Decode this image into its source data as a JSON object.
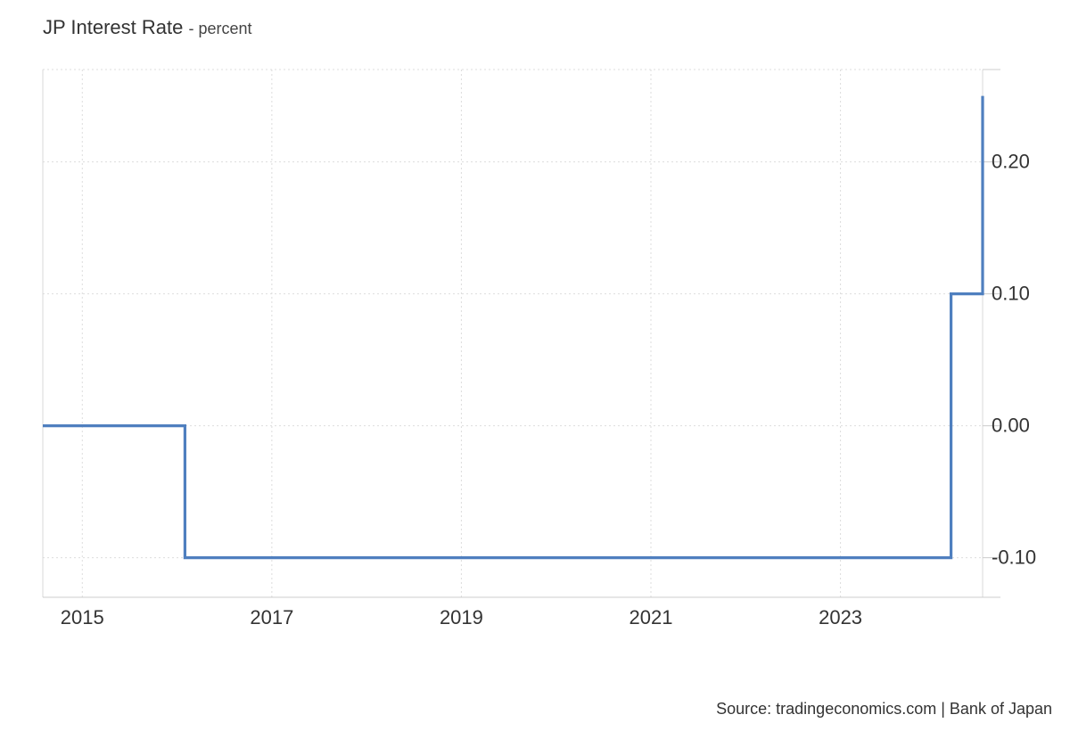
{
  "chart_data": {
    "type": "line",
    "title": "JP Interest Rate",
    "unit": "- percent",
    "source": "Source: tradingeconomics.com | Bank of Japan",
    "step": true,
    "grid": true,
    "y_axis_side": "right",
    "xlim": [
      "2014-08",
      "2024-07"
    ],
    "ylim": [
      -0.13,
      0.27
    ],
    "x_ticks": [
      {
        "date": "2015-01",
        "label": "2015"
      },
      {
        "date": "2017-01",
        "label": "2017"
      },
      {
        "date": "2019-01",
        "label": "2019"
      },
      {
        "date": "2021-01",
        "label": "2021"
      },
      {
        "date": "2023-01",
        "label": "2023"
      }
    ],
    "y_ticks": [
      {
        "value": 0.2,
        "label": "0.20"
      },
      {
        "value": 0.1,
        "label": "0.10"
      },
      {
        "value": 0.0,
        "label": "0.00"
      },
      {
        "value": -0.1,
        "label": "-0.10"
      }
    ],
    "series": [
      {
        "color": "#4f7fbf",
        "points": [
          {
            "date": "2014-08",
            "value": 0.0
          },
          {
            "date": "2016-02",
            "value": -0.1
          },
          {
            "date": "2024-03",
            "value": 0.1
          },
          {
            "date": "2024-07",
            "value": 0.25
          }
        ]
      }
    ]
  }
}
